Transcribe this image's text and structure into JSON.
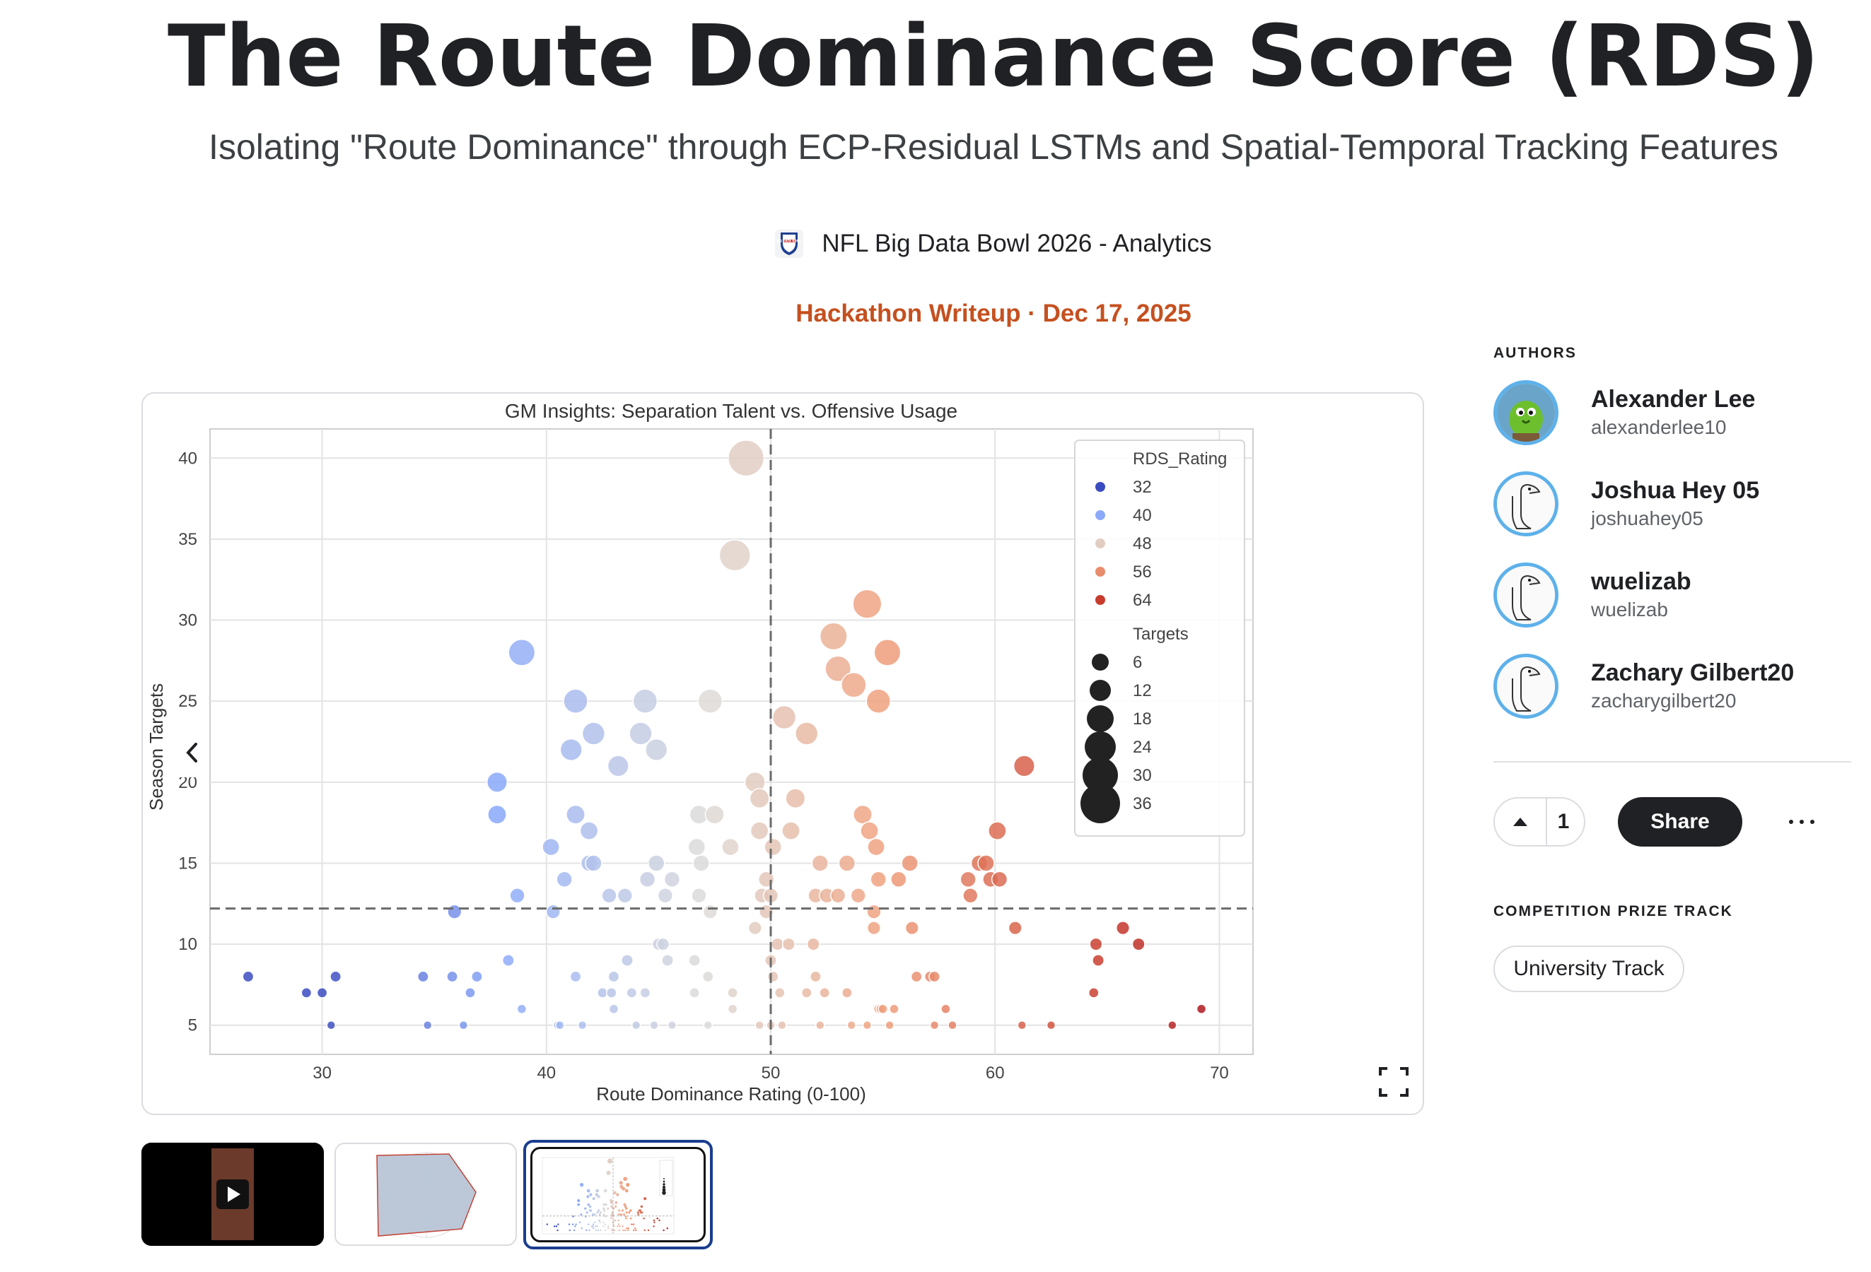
{
  "header": {
    "title": "The Route Dominance Score (RDS)",
    "subtitle": "Isolating \"Route Dominance\" through ECP-Residual LSTMs and Spatial-Temporal Tracking Features",
    "competition": "NFL Big Data Bowl 2026 - Analytics",
    "competition_logo_text": "BIG DATA BOWL",
    "meta": "Hackathon Writeup · Dec 17, 2025"
  },
  "colors": {
    "accent": "#c5501f",
    "avatar_ring": "#5eb1ea",
    "share_bg": "#202124",
    "thumb_selected": "#1a3d8f"
  },
  "icons": {
    "prev": "chevron-left-icon",
    "fullscreen": "fullscreen-icon",
    "play": "play-icon",
    "upvote": "caret-up-icon",
    "more": "more-horizontal-icon"
  },
  "sidebar": {
    "authors_label": "AUTHORS",
    "authors": [
      {
        "name": "Alexander Lee",
        "handle": "alexanderlee10"
      },
      {
        "name": "Joshua Hey 05",
        "handle": "joshuahey05"
      },
      {
        "name": "wuelizab",
        "handle": "wuelizab"
      },
      {
        "name": "Zachary Gilbert20",
        "handle": "zacharygilbert20"
      }
    ],
    "votes": "1",
    "share_label": "Share",
    "prize_label": "COMPETITION PRIZE TRACK",
    "prize_track": "University Track"
  },
  "chart_data": {
    "type": "scatter",
    "title": "GM Insights: Separation Talent vs. Offensive Usage",
    "xlabel": "Route Dominance Rating (0-100)",
    "ylabel": "Season Targets",
    "xlim": [
      25,
      71.5
    ],
    "ylim": [
      3.2,
      41.8
    ],
    "xticks": [
      30,
      40,
      50,
      60,
      70
    ],
    "yticks": [
      5,
      10,
      15,
      20,
      25,
      30,
      35,
      40
    ],
    "grid": true,
    "reference_lines": {
      "x": 50,
      "y": 12.2
    },
    "color_encoding": "RDS_Rating (coolwarm)",
    "size_encoding": "Targets",
    "legend_position": "top-right",
    "legend": {
      "color_title": "RDS_Rating",
      "color_entries": [
        "32",
        "40",
        "48",
        "56",
        "64"
      ],
      "size_title": "Targets",
      "size_entries": [
        "6",
        "12",
        "18",
        "24",
        "30",
        "36"
      ]
    },
    "points": [
      {
        "x": 26.7,
        "y": 8
      },
      {
        "x": 29.3,
        "y": 7
      },
      {
        "x": 30,
        "y": 7
      },
      {
        "x": 30.6,
        "y": 8
      },
      {
        "x": 30.4,
        "y": 5
      },
      {
        "x": 34.5,
        "y": 8
      },
      {
        "x": 34.7,
        "y": 5
      },
      {
        "x": 35.8,
        "y": 8
      },
      {
        "x": 35.9,
        "y": 12
      },
      {
        "x": 36.3,
        "y": 5
      },
      {
        "x": 36.6,
        "y": 7
      },
      {
        "x": 36.9,
        "y": 8
      },
      {
        "x": 37.8,
        "y": 20
      },
      {
        "x": 37.8,
        "y": 18
      },
      {
        "x": 38.3,
        "y": 9
      },
      {
        "x": 38.7,
        "y": 13
      },
      {
        "x": 38.9,
        "y": 28
      },
      {
        "x": 38.9,
        "y": 6
      },
      {
        "x": 40.2,
        "y": 16
      },
      {
        "x": 40.3,
        "y": 12
      },
      {
        "x": 40.5,
        "y": 5
      },
      {
        "x": 40.8,
        "y": 14
      },
      {
        "x": 40.6,
        "y": 5
      },
      {
        "x": 41.3,
        "y": 18
      },
      {
        "x": 41.3,
        "y": 25
      },
      {
        "x": 41.1,
        "y": 22
      },
      {
        "x": 41.3,
        "y": 8
      },
      {
        "x": 41.6,
        "y": 5
      },
      {
        "x": 41.9,
        "y": 17
      },
      {
        "x": 41.9,
        "y": 15
      },
      {
        "x": 42.1,
        "y": 15
      },
      {
        "x": 42.1,
        "y": 23
      },
      {
        "x": 42.5,
        "y": 7
      },
      {
        "x": 42.8,
        "y": 13
      },
      {
        "x": 42.9,
        "y": 7
      },
      {
        "x": 43,
        "y": 6
      },
      {
        "x": 43,
        "y": 8
      },
      {
        "x": 43.2,
        "y": 21
      },
      {
        "x": 43.5,
        "y": 13
      },
      {
        "x": 43.6,
        "y": 9
      },
      {
        "x": 43.8,
        "y": 7
      },
      {
        "x": 44,
        "y": 5
      },
      {
        "x": 44.2,
        "y": 23
      },
      {
        "x": 44.4,
        "y": 25
      },
      {
        "x": 44.4,
        "y": 7
      },
      {
        "x": 44.5,
        "y": 14
      },
      {
        "x": 44.8,
        "y": 5
      },
      {
        "x": 44.9,
        "y": 15
      },
      {
        "x": 44.9,
        "y": 22
      },
      {
        "x": 45,
        "y": 10
      },
      {
        "x": 45.2,
        "y": 10
      },
      {
        "x": 45.3,
        "y": 13
      },
      {
        "x": 45.4,
        "y": 9
      },
      {
        "x": 45.6,
        "y": 5
      },
      {
        "x": 45.6,
        "y": 14
      },
      {
        "x": 46.6,
        "y": 9
      },
      {
        "x": 46.6,
        "y": 7
      },
      {
        "x": 46.7,
        "y": 16
      },
      {
        "x": 46.8,
        "y": 13
      },
      {
        "x": 46.8,
        "y": 18
      },
      {
        "x": 46.9,
        "y": 15
      },
      {
        "x": 47.2,
        "y": 8
      },
      {
        "x": 47.3,
        "y": 12
      },
      {
        "x": 47.2,
        "y": 5
      },
      {
        "x": 47.3,
        "y": 25
      },
      {
        "x": 47.5,
        "y": 18
      },
      {
        "x": 48.2,
        "y": 16
      },
      {
        "x": 48.3,
        "y": 7
      },
      {
        "x": 48.4,
        "y": 34
      },
      {
        "x": 48.3,
        "y": 6
      },
      {
        "x": 48.9,
        "y": 40
      },
      {
        "x": 49.3,
        "y": 20
      },
      {
        "x": 49.3,
        "y": 11
      },
      {
        "x": 49.5,
        "y": 19
      },
      {
        "x": 49.5,
        "y": 17
      },
      {
        "x": 49.5,
        "y": 5
      },
      {
        "x": 49.6,
        "y": 13
      },
      {
        "x": 49.8,
        "y": 12
      },
      {
        "x": 49.8,
        "y": 14
      },
      {
        "x": 50,
        "y": 9
      },
      {
        "x": 50,
        "y": 5
      },
      {
        "x": 50,
        "y": 13
      },
      {
        "x": 50.1,
        "y": 8
      },
      {
        "x": 50.1,
        "y": 16
      },
      {
        "x": 50.3,
        "y": 10
      },
      {
        "x": 50.4,
        "y": 7
      },
      {
        "x": 50.5,
        "y": 5
      },
      {
        "x": 50.6,
        "y": 24
      },
      {
        "x": 50.8,
        "y": 10
      },
      {
        "x": 50.9,
        "y": 17
      },
      {
        "x": 51.1,
        "y": 19
      },
      {
        "x": 51.6,
        "y": 23
      },
      {
        "x": 51.6,
        "y": 7
      },
      {
        "x": 51.9,
        "y": 10
      },
      {
        "x": 52,
        "y": 8
      },
      {
        "x": 52,
        "y": 13
      },
      {
        "x": 52.2,
        "y": 15
      },
      {
        "x": 52.4,
        "y": 7
      },
      {
        "x": 52.2,
        "y": 5
      },
      {
        "x": 52.5,
        "y": 13
      },
      {
        "x": 52.8,
        "y": 29
      },
      {
        "x": 53,
        "y": 27
      },
      {
        "x": 53,
        "y": 13
      },
      {
        "x": 53.4,
        "y": 7
      },
      {
        "x": 53.4,
        "y": 15
      },
      {
        "x": 53.6,
        "y": 5
      },
      {
        "x": 53.7,
        "y": 26
      },
      {
        "x": 53.9,
        "y": 13
      },
      {
        "x": 54.1,
        "y": 18
      },
      {
        "x": 54.3,
        "y": 5
      },
      {
        "x": 54.3,
        "y": 31
      },
      {
        "x": 54.4,
        "y": 17
      },
      {
        "x": 54.6,
        "y": 12
      },
      {
        "x": 54.6,
        "y": 11
      },
      {
        "x": 54.7,
        "y": 16
      },
      {
        "x": 54.8,
        "y": 25
      },
      {
        "x": 54.8,
        "y": 6
      },
      {
        "x": 54.8,
        "y": 14
      },
      {
        "x": 54.9,
        "y": 6
      },
      {
        "x": 55,
        "y": 6
      },
      {
        "x": 55.2,
        "y": 28
      },
      {
        "x": 55.3,
        "y": 5
      },
      {
        "x": 55.5,
        "y": 6
      },
      {
        "x": 55.7,
        "y": 14
      },
      {
        "x": 56.2,
        "y": 15
      },
      {
        "x": 56.3,
        "y": 11
      },
      {
        "x": 56.5,
        "y": 8
      },
      {
        "x": 57.1,
        "y": 8
      },
      {
        "x": 57.3,
        "y": 8
      },
      {
        "x": 57.3,
        "y": 5
      },
      {
        "x": 57.8,
        "y": 6
      },
      {
        "x": 58.1,
        "y": 5
      },
      {
        "x": 58.8,
        "y": 14
      },
      {
        "x": 58.9,
        "y": 13
      },
      {
        "x": 59.3,
        "y": 15
      },
      {
        "x": 59.6,
        "y": 15
      },
      {
        "x": 59.8,
        "y": 14
      },
      {
        "x": 60.1,
        "y": 17
      },
      {
        "x": 60.2,
        "y": 14
      },
      {
        "x": 60.9,
        "y": 11
      },
      {
        "x": 61.3,
        "y": 21
      },
      {
        "x": 61.2,
        "y": 5
      },
      {
        "x": 62.5,
        "y": 5
      },
      {
        "x": 64.4,
        "y": 7
      },
      {
        "x": 64.5,
        "y": 10
      },
      {
        "x": 64.6,
        "y": 9
      },
      {
        "x": 65.7,
        "y": 11
      },
      {
        "x": 66.4,
        "y": 10
      },
      {
        "x": 67.9,
        "y": 5
      },
      {
        "x": 69.2,
        "y": 6
      }
    ]
  }
}
